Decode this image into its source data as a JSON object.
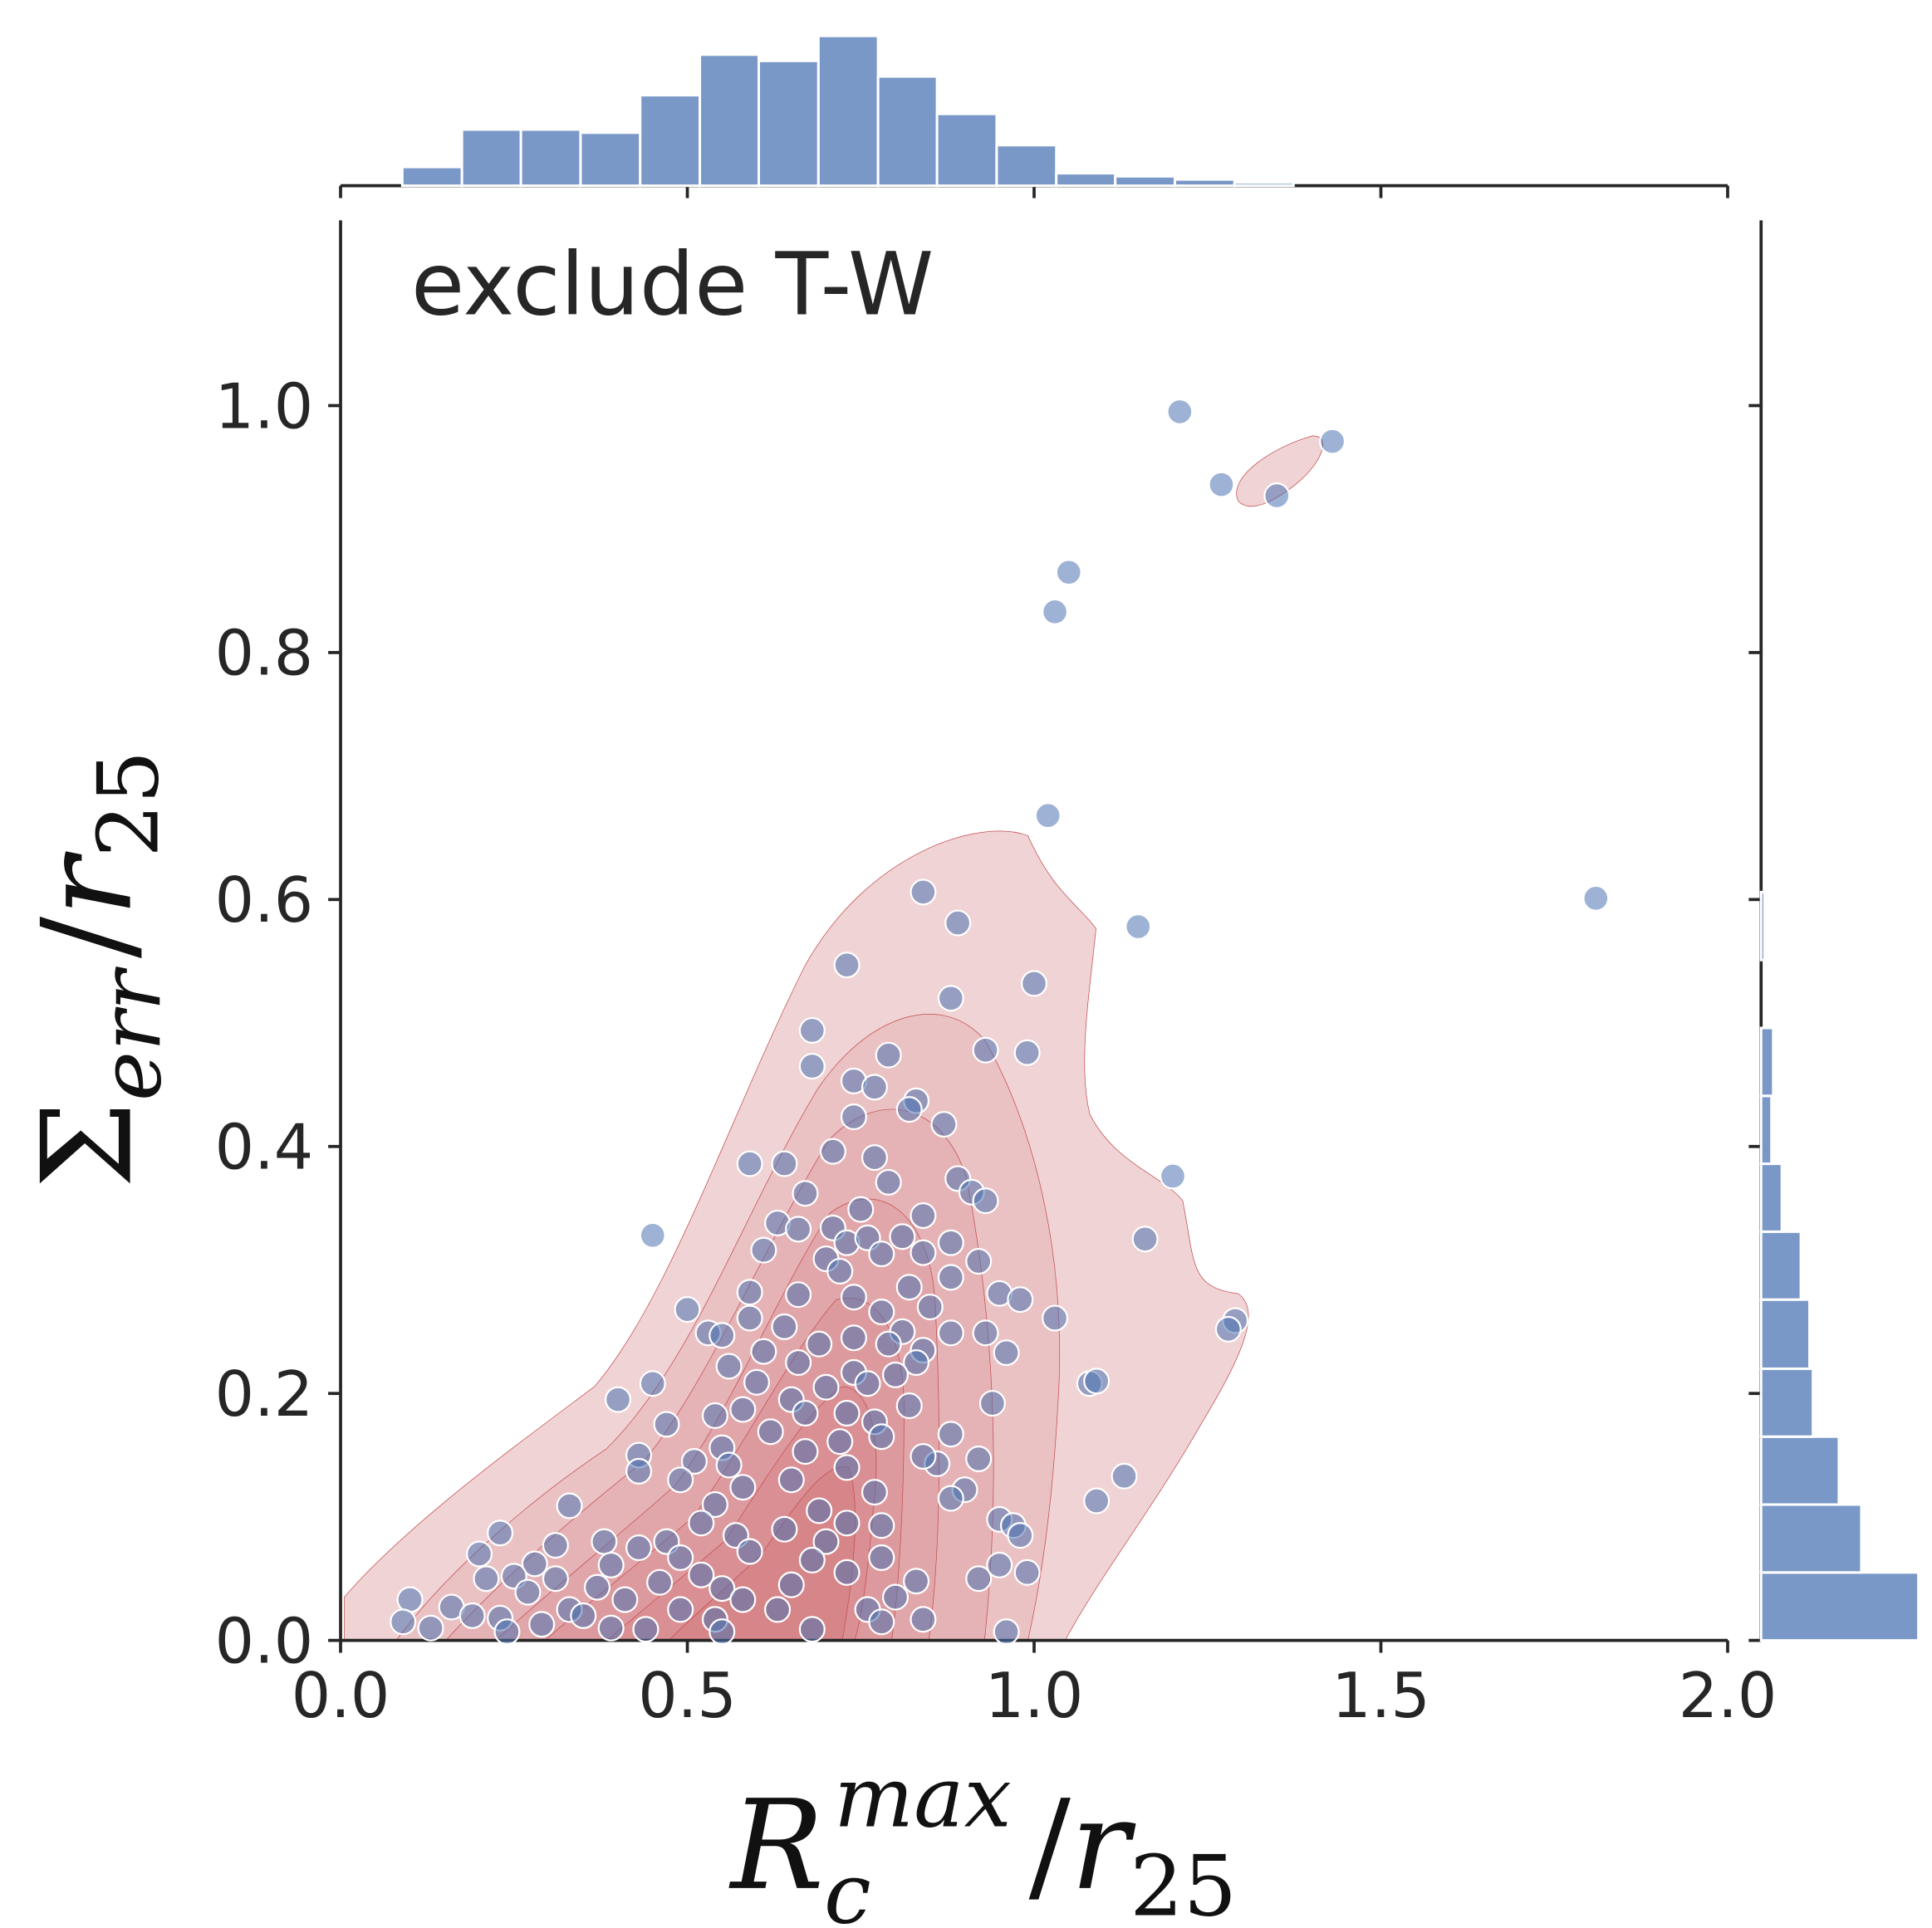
{
  "chart_data": [
    {
      "type": "scatter",
      "annotation": "exclude T-W",
      "xlabel": [
        "R",
        "c",
        "max",
        "/",
        "r",
        "25"
      ],
      "ylabel": [
        "Σ",
        "err",
        "/",
        "r",
        "25"
      ],
      "color": "#4c72b0",
      "kde_color": "#c44e52",
      "xlim": [
        0,
        2
      ],
      "ylim": [
        0,
        1.15
      ],
      "xticks": [
        {
          "value": 0,
          "label": "0.0"
        },
        {
          "value": 0.5,
          "label": "0.5"
        },
        {
          "value": 1,
          "label": "1.0"
        },
        {
          "value": 1.5,
          "label": "1.5"
        },
        {
          "value": 2,
          "label": "2.0"
        }
      ],
      "yticks": [
        {
          "value": 0,
          "label": "0.0"
        },
        {
          "value": 0.2,
          "label": "0.2"
        },
        {
          "value": 0.4,
          "label": "0.4"
        },
        {
          "value": 0.6,
          "label": "0.6"
        },
        {
          "value": 0.8,
          "label": "0.8"
        },
        {
          "value": 1,
          "label": "1.0"
        }
      ],
      "x": [
        1.21,
        1.43,
        1.27,
        1.35,
        1.05,
        1.03,
        1.02,
        1.81,
        1.15,
        0.84,
        0.89,
        0.73,
        0.88,
        1.0,
        0.68,
        0.68,
        0.93,
        0.99,
        0.79,
        0.74,
        0.77,
        0.83,
        0.74,
        0.87,
        0.82,
        0.59,
        0.64,
        0.71,
        0.77,
        1.2,
        0.89,
        0.79,
        0.67,
        0.91,
        0.93,
        0.75,
        0.84,
        0.63,
        0.71,
        0.45,
        1.16,
        0.73,
        0.88,
        0.81,
        0.76,
        0.61,
        0.66,
        0.84,
        0.92,
        0.88,
        0.7,
        0.78,
        0.72,
        0.59,
        0.66,
        0.95,
        0.82,
        0.98,
        0.74,
        0.5,
        0.85,
        0.78,
        0.59,
        1.03,
        1.29,
        1.28,
        0.53,
        0.55,
        0.64,
        0.88,
        0.93,
        0.74,
        0.81,
        0.69,
        0.61,
        0.79,
        0.84,
        0.96,
        0.66,
        0.83,
        0.56,
        0.74,
        1.08,
        1.09,
        0.8,
        0.45,
        0.6,
        0.7,
        0.76,
        0.4,
        0.94,
        0.82,
        0.54,
        0.65,
        0.58,
        0.67,
        0.73,
        0.77,
        0.47,
        0.62,
        0.88,
        0.72,
        0.78,
        0.55,
        0.43,
        0.51,
        0.56,
        0.67,
        0.86,
        0.84,
        0.73,
        0.92,
        0.43,
        1.13,
        0.65,
        0.49,
        0.9,
        0.58,
        0.77,
        0.88,
        1.09,
        0.33,
        0.54,
        0.69,
        0.95,
        0.73,
        0.97,
        0.52,
        0.78,
        0.64,
        0.57,
        0.23,
        0.98,
        0.38,
        0.31,
        0.47,
        0.7,
        0.43,
        0.59,
        0.2,
        0.49,
        0.78,
        0.68,
        0.28,
        0.39,
        0.95,
        0.99,
        0.73,
        0.52,
        0.21,
        0.25,
        0.31,
        0.46,
        0.83,
        0.92,
        0.65,
        0.37,
        0.55,
        0.27,
        0.8,
        0.41,
        0.1,
        0.58,
        0.16,
        0.33,
        0.49,
        0.63,
        0.76,
        0.19,
        0.35,
        0.23,
        0.09,
        0.54,
        0.84,
        0.78,
        0.29,
        0.13,
        0.44,
        0.24,
        0.55,
        0.96,
        0.68,
        0.39
      ],
      "y": [
        0.995,
        0.971,
        0.936,
        0.927,
        0.865,
        0.833,
        0.668,
        0.601,
        0.578,
        0.606,
        0.581,
        0.547,
        0.52,
        0.532,
        0.494,
        0.465,
        0.478,
        0.476,
        0.474,
        0.453,
        0.448,
        0.437,
        0.424,
        0.418,
        0.43,
        0.386,
        0.386,
        0.396,
        0.391,
        0.376,
        0.374,
        0.371,
        0.362,
        0.363,
        0.356,
        0.349,
        0.344,
        0.338,
        0.334,
        0.328,
        0.325,
        0.322,
        0.322,
        0.327,
        0.326,
        0.316,
        0.333,
        0.314,
        0.307,
        0.294,
        0.309,
        0.313,
        0.299,
        0.282,
        0.28,
        0.281,
        0.286,
        0.276,
        0.278,
        0.268,
        0.27,
        0.266,
        0.261,
        0.261,
        0.259,
        0.252,
        0.249,
        0.247,
        0.254,
        0.249,
        0.249,
        0.245,
        0.25,
        0.24,
        0.234,
        0.24,
        0.235,
        0.233,
        0.225,
        0.225,
        0.222,
        0.217,
        0.208,
        0.21,
        0.215,
        0.208,
        0.209,
        0.205,
        0.208,
        0.195,
        0.192,
        0.19,
        0.182,
        0.195,
        0.187,
        0.184,
        0.184,
        0.177,
        0.175,
        0.169,
        0.167,
        0.161,
        0.165,
        0.156,
        0.15,
        0.145,
        0.142,
        0.153,
        0.143,
        0.149,
        0.14,
        0.147,
        0.137,
        0.133,
        0.13,
        0.13,
        0.122,
        0.124,
        0.12,
        0.115,
        0.113,
        0.109,
        0.11,
        0.105,
        0.098,
        0.095,
        0.093,
        0.095,
        0.093,
        0.09,
        0.085,
        0.087,
        0.085,
        0.08,
        0.077,
        0.08,
        0.08,
        0.075,
        0.072,
        0.07,
        0.067,
        0.067,
        0.065,
        0.062,
        0.061,
        0.061,
        0.055,
        0.055,
        0.053,
        0.05,
        0.052,
        0.05,
        0.047,
        0.048,
        0.05,
        0.045,
        0.043,
        0.042,
        0.039,
        0.035,
        0.033,
        0.033,
        0.033,
        0.027,
        0.025,
        0.025,
        0.025,
        0.025,
        0.02,
        0.02,
        0.018,
        0.015,
        0.017,
        0.017,
        0.015,
        0.013,
        0.01,
        0.009,
        0.007,
        0.007,
        0.007,
        0.009,
        0.01
      ]
    },
    {
      "type": "histogram",
      "orientation": "vertical",
      "color": "#7a98c7",
      "bins": [
        0.089,
        0.175,
        0.26,
        0.346,
        0.432,
        0.518,
        0.603,
        0.689,
        0.775,
        0.86,
        0.946,
        1.032,
        1.117,
        1.203,
        1.289,
        1.374
      ],
      "counts": [
        6,
        18,
        18,
        17,
        29,
        42,
        40,
        48,
        35,
        23,
        13,
        4,
        3,
        2,
        1
      ]
    },
    {
      "type": "histogram",
      "orientation": "horizontal",
      "color": "#7a98c7",
      "bins": [
        0,
        0.055,
        0.11,
        0.165,
        0.22,
        0.276,
        0.331,
        0.386,
        0.441,
        0.496,
        0.551,
        0.606
      ],
      "counts": [
        91,
        58,
        45,
        30,
        28,
        23,
        12,
        6,
        7,
        0,
        2
      ]
    }
  ]
}
